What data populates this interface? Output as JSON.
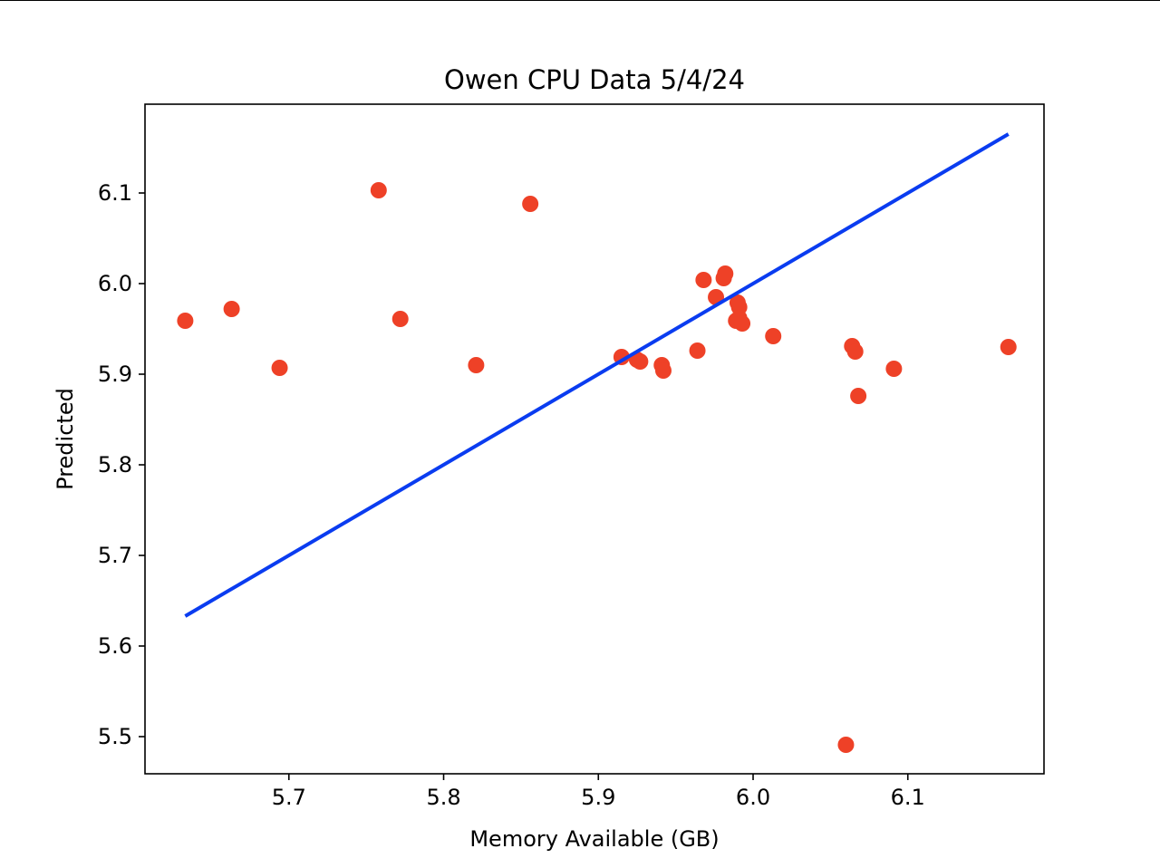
{
  "chart_data": {
    "type": "scatter",
    "title": "Owen CPU Data 5/4/24",
    "xlabel": "Memory Available (GB)",
    "ylabel": "Predicted",
    "xlim": [
      5.607,
      6.188
    ],
    "ylim": [
      5.459,
      6.198
    ],
    "x_ticks": [
      5.7,
      5.8,
      5.9,
      6.0,
      6.1
    ],
    "x_tick_labels": [
      "5.7",
      "5.8",
      "5.9",
      "6.0",
      "6.1"
    ],
    "y_ticks": [
      5.5,
      5.6,
      5.7,
      5.8,
      5.9,
      6.0,
      6.1
    ],
    "y_tick_labels": [
      "5.5",
      "5.6",
      "5.7",
      "5.8",
      "5.9",
      "6.0",
      "6.1"
    ],
    "grid": false,
    "legend": false,
    "colors": {
      "points": "#ee4127",
      "line": "#0a3cf0",
      "frame": "#000000"
    },
    "series": [
      {
        "kind": "scatter",
        "x": [
          5.633,
          5.663,
          5.694,
          5.758,
          5.772,
          5.821,
          5.856,
          5.915,
          5.925,
          5.927,
          5.941,
          5.942,
          5.964,
          5.968,
          5.976,
          5.981,
          5.982,
          5.989,
          5.99,
          5.991,
          5.991,
          5.993,
          6.013,
          6.064,
          6.066,
          6.068,
          6.06,
          6.091,
          6.165
        ],
        "y": [
          5.959,
          5.972,
          5.907,
          6.103,
          5.961,
          5.91,
          6.088,
          5.919,
          5.916,
          5.914,
          5.91,
          5.904,
          5.926,
          6.004,
          5.985,
          6.006,
          6.011,
          5.959,
          5.979,
          5.974,
          5.962,
          5.956,
          5.942,
          5.931,
          5.925,
          5.876,
          5.491,
          5.906,
          5.93
        ]
      },
      {
        "kind": "line",
        "x": [
          5.633,
          6.165
        ],
        "y": [
          5.633,
          6.165
        ]
      }
    ]
  }
}
